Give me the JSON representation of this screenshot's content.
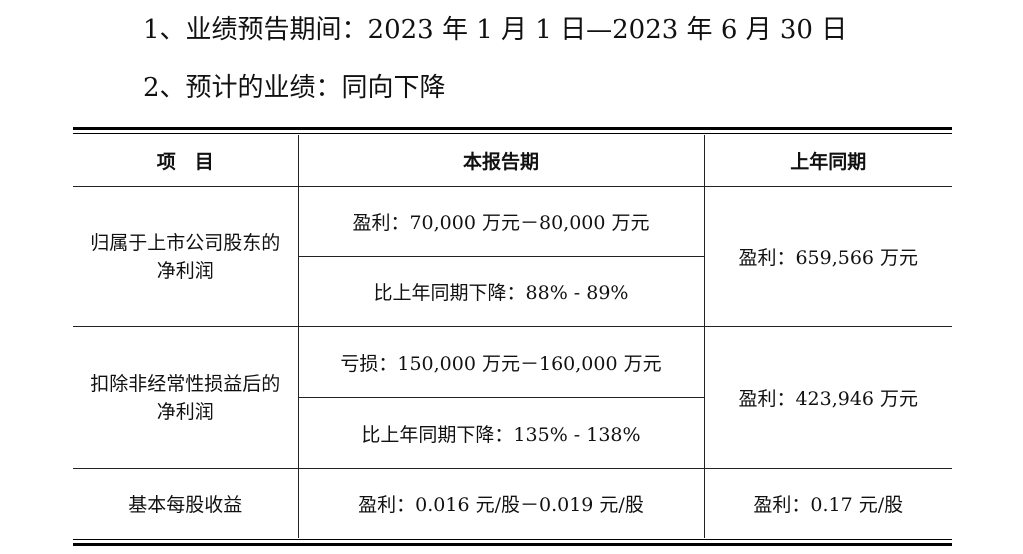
{
  "intro": {
    "line1": "1、业绩预告期间：2023 年 1 月 1 日—2023 年 6 月 30 日",
    "line2": "2、预计的业绩：同向下降"
  },
  "table": {
    "headers": [
      "项　目",
      "本报告期",
      "上年同期"
    ],
    "rows": [
      {
        "label": "归属于上市公司股东的净利润",
        "current_range": "盈利：70,000 万元－80,000 万元",
        "current_change": "比上年同期下降：88% - 89%",
        "previous": "盈利：659,566 万元"
      },
      {
        "label": "扣除非经常性损益后的净利润",
        "current_range": "亏损：150,000 万元－160,000 万元",
        "current_change": "比上年同期下降：135% - 138%",
        "previous": "盈利：423,946 万元"
      },
      {
        "label": "基本每股收益",
        "current_range": "盈利：0.016 元/股－0.019 元/股",
        "previous": "盈利：0.17 元/股"
      }
    ]
  }
}
